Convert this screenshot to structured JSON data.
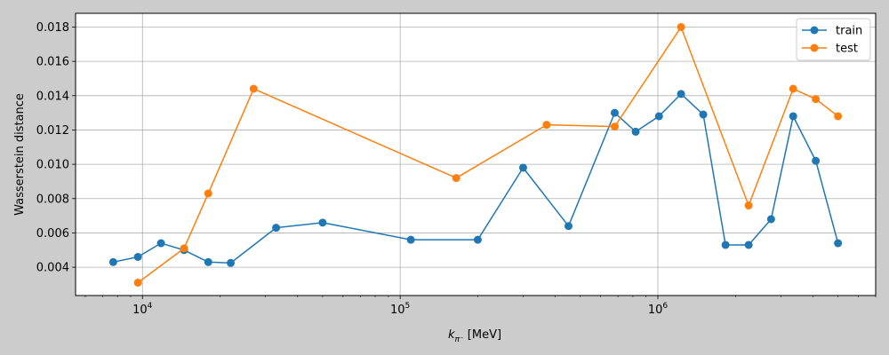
{
  "chart_data": {
    "type": "line",
    "xlabel": "k",
    "xlabel_sub": "π⁻",
    "xlabel_unit": " [MeV]",
    "ylabel": "Wasserstein distance",
    "xscale": "log",
    "xlim": [
      5500,
      7000000
    ],
    "ylim": [
      0.00235,
      0.0188
    ],
    "x_ticks": [
      {
        "value": 10000,
        "base": "10",
        "exp": "4"
      },
      {
        "value": 100000,
        "base": "10",
        "exp": "5"
      },
      {
        "value": 1000000,
        "base": "10",
        "exp": "6"
      }
    ],
    "y_ticks": [
      {
        "value": 0.004,
        "label": "0.004"
      },
      {
        "value": 0.006,
        "label": "0.006"
      },
      {
        "value": 0.008,
        "label": "0.008"
      },
      {
        "value": 0.01,
        "label": "0.010"
      },
      {
        "value": 0.012,
        "label": "0.012"
      },
      {
        "value": 0.014,
        "label": "0.014"
      },
      {
        "value": 0.016,
        "label": "0.016"
      },
      {
        "value": 0.018,
        "label": "0.018"
      }
    ],
    "grid": true,
    "legend_position": "top-right",
    "series": [
      {
        "name": "train",
        "color": "#1f77b4",
        "x": [
          7700,
          9600,
          11800,
          14500,
          18000,
          22000,
          33000,
          50000,
          110000,
          200000,
          300000,
          450000,
          680000,
          820000,
          1010000,
          1230000,
          1500000,
          1830000,
          2250000,
          2750000,
          3350000,
          4100000,
          5000000
        ],
        "y": [
          0.0043,
          0.0046,
          0.0054,
          0.005,
          0.0043,
          0.00425,
          0.0063,
          0.0066,
          0.0056,
          0.0056,
          0.0098,
          0.0064,
          0.013,
          0.0119,
          0.0128,
          0.0141,
          0.0129,
          0.0053,
          0.0053,
          0.0068,
          0.0128,
          0.0102,
          0.0054
        ]
      },
      {
        "name": "test",
        "color": "#ff7f0e",
        "x": [
          9600,
          14500,
          18000,
          27000,
          165000,
          370000,
          680000,
          1230000,
          2250000,
          3350000,
          4100000,
          5000000
        ],
        "y": [
          0.0031,
          0.0051,
          0.0083,
          0.0144,
          0.0092,
          0.0123,
          0.0122,
          0.018,
          0.0076,
          0.0144,
          0.0138,
          0.0128
        ]
      }
    ]
  }
}
